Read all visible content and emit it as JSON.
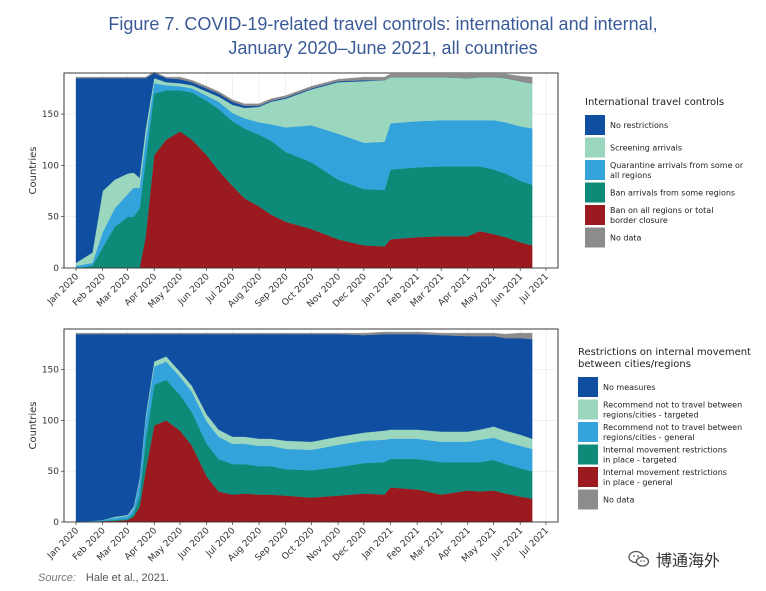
{
  "title_line1": "Figure 7. COVID-19-related travel controls: international and internal,",
  "title_line2": "January 2020–June 2021, all countries",
  "source_label": "Source:",
  "source_text": "Hale et al., 2021.",
  "watermark_text": "博通海外",
  "watermark_icon": "wechat-icon",
  "chart_data": [
    {
      "type": "area",
      "stacked": true,
      "ylabel": "Countries",
      "ylim": [
        0,
        190
      ],
      "yticks": [
        0,
        50,
        100,
        150
      ],
      "x_tick_labels": [
        "Jan 2020",
        "Feb 2020",
        "Mar 2020",
        "Apr 2020",
        "May 2020",
        "Jun 2020",
        "Jul 2020",
        "Aug 2020",
        "Sep 2020",
        "Oct 2020",
        "Nov 2020",
        "Dec 2020",
        "Jan 2021",
        "Feb 2021",
        "Mar 2021",
        "Apr 2021",
        "May 2021",
        "Jun 2021",
        "Jul 2021"
      ],
      "grid": true,
      "legend_position": "right",
      "legend_title": "International travel controls",
      "x": [
        "2020-01-01",
        "2020-01-20",
        "2020-02-01",
        "2020-02-15",
        "2020-03-01",
        "2020-03-08",
        "2020-03-15",
        "2020-03-22",
        "2020-04-01",
        "2020-04-15",
        "2020-05-01",
        "2020-05-15",
        "2020-06-01",
        "2020-06-15",
        "2020-07-01",
        "2020-07-15",
        "2020-08-01",
        "2020-08-15",
        "2020-09-01",
        "2020-10-01",
        "2020-11-01",
        "2020-12-01",
        "2020-12-25",
        "2021-01-01",
        "2021-02-01",
        "2021-03-01",
        "2021-04-01",
        "2021-04-15",
        "2021-05-01",
        "2021-05-15",
        "2021-06-01",
        "2021-06-15"
      ],
      "series": [
        {
          "name": "Ban on all regions or total border closure",
          "color": "#9b1a1f",
          "values": [
            0,
            0,
            0,
            0,
            0,
            0,
            0,
            30,
            110,
            125,
            133,
            125,
            110,
            95,
            80,
            68,
            60,
            52,
            45,
            38,
            28,
            22,
            21,
            28,
            30,
            31,
            31,
            36,
            33,
            30,
            25,
            22
          ]
        },
        {
          "name": "Ban arrivals from some regions",
          "color": "#0e8a78",
          "values": [
            0,
            2,
            20,
            40,
            50,
            50,
            58,
            75,
            60,
            48,
            40,
            46,
            53,
            60,
            63,
            68,
            70,
            72,
            68,
            65,
            58,
            55,
            55,
            68,
            68,
            68,
            68,
            63,
            63,
            62,
            60,
            59
          ]
        },
        {
          "name": "Quarantine arrivals from some or all regions",
          "color": "#35a3db",
          "values": [
            2,
            3,
            15,
            18,
            22,
            28,
            20,
            20,
            10,
            5,
            4,
            4,
            5,
            7,
            8,
            10,
            12,
            16,
            24,
            36,
            45,
            45,
            47,
            45,
            45,
            45,
            45,
            45,
            48,
            50,
            53,
            55
          ]
        },
        {
          "name": "Screening arrivals",
          "color": "#9bd6bf",
          "values": [
            3,
            10,
            40,
            28,
            20,
            15,
            10,
            10,
            5,
            3,
            3,
            3,
            4,
            5,
            8,
            10,
            15,
            22,
            28,
            35,
            50,
            60,
            60,
            45,
            43,
            42,
            41,
            42,
            42,
            43,
            44,
            44
          ]
        },
        {
          "name": "No restrictions",
          "color": "#0f4ea0",
          "values": [
            180,
            170,
            110,
            99,
            93,
            92,
            97,
            50,
            5,
            4,
            4,
            3,
            3,
            3,
            3,
            2,
            1,
            1,
            1,
            1,
            1,
            1,
            0,
            0,
            0,
            0,
            0,
            0,
            0,
            0,
            0,
            0
          ]
        },
        {
          "name": "No data",
          "color": "#8c8c8c",
          "values": [
            1,
            1,
            1,
            1,
            1,
            1,
            1,
            1,
            1,
            1,
            2,
            2,
            2,
            2,
            2,
            2,
            2,
            2,
            2,
            2,
            2,
            3,
            3,
            3,
            3,
            3,
            4,
            3,
            3,
            4,
            5,
            6
          ]
        }
      ]
    },
    {
      "type": "area",
      "stacked": true,
      "ylabel": "Countries",
      "ylim": [
        0,
        190
      ],
      "yticks": [
        0,
        50,
        100,
        150
      ],
      "x_tick_labels": [
        "Jan 2020",
        "Feb 2020",
        "Mar 2020",
        "Apr 2020",
        "May 2020",
        "Jun 2020",
        "Jul 2020",
        "Aug 2020",
        "Sep 2020",
        "Oct 2020",
        "Nov 2020",
        "Dec 2020",
        "Jan 2021",
        "Feb 2021",
        "Mar 2021",
        "Apr 2021",
        "May 2021",
        "Jun 2021",
        "Jul 2021"
      ],
      "grid": true,
      "legend_position": "right",
      "legend_title": "Restrictions on internal movement between cities/regions",
      "x": [
        "2020-01-01",
        "2020-01-20",
        "2020-02-01",
        "2020-02-15",
        "2020-03-01",
        "2020-03-08",
        "2020-03-15",
        "2020-03-22",
        "2020-04-01",
        "2020-04-15",
        "2020-05-01",
        "2020-05-15",
        "2020-06-01",
        "2020-06-15",
        "2020-07-01",
        "2020-07-15",
        "2020-08-01",
        "2020-08-15",
        "2020-09-01",
        "2020-10-01",
        "2020-11-01",
        "2020-12-01",
        "2020-12-25",
        "2021-01-01",
        "2021-02-01",
        "2021-03-01",
        "2021-04-01",
        "2021-04-15",
        "2021-05-01",
        "2021-05-15",
        "2021-06-01",
        "2021-06-15"
      ],
      "series": [
        {
          "name": "Internal movement restrictions in place - general",
          "color": "#9b1a1f",
          "values": [
            0,
            0,
            1,
            1,
            2,
            5,
            15,
            50,
            95,
            100,
            90,
            75,
            45,
            30,
            27,
            28,
            27,
            27,
            26,
            24,
            26,
            28,
            27,
            34,
            32,
            27,
            31,
            30,
            31,
            28,
            25,
            23
          ]
        },
        {
          "name": "Internal movement restrictions in place - targeted",
          "color": "#0e8a78",
          "values": [
            0,
            0,
            0,
            1,
            1,
            3,
            10,
            30,
            40,
            40,
            35,
            33,
            32,
            32,
            30,
            29,
            28,
            28,
            26,
            27,
            28,
            30,
            32,
            28,
            30,
            32,
            28,
            29,
            30,
            29,
            28,
            27
          ]
        },
        {
          "name": "Recommend not to travel between regions/cities - general",
          "color": "#35a3db",
          "values": [
            0,
            1,
            1,
            2,
            3,
            5,
            15,
            20,
            18,
            18,
            18,
            20,
            22,
            22,
            20,
            20,
            20,
            20,
            20,
            20,
            22,
            22,
            22,
            20,
            20,
            20,
            20,
            22,
            22,
            22,
            22,
            22
          ]
        },
        {
          "name": "Recommend not to travel between regions/cities - targeted",
          "color": "#9bd6bf",
          "values": [
            0,
            0,
            0,
            1,
            1,
            2,
            3,
            4,
            5,
            5,
            5,
            6,
            7,
            7,
            7,
            7,
            7,
            7,
            8,
            8,
            8,
            8,
            9,
            9,
            9,
            10,
            10,
            10,
            11,
            11,
            11,
            10
          ]
        },
        {
          "name": "No measures",
          "color": "#0f4ea0",
          "values": [
            185,
            184,
            183,
            180,
            178,
            170,
            142,
            81,
            27,
            22,
            37,
            51,
            79,
            94,
            101,
            101,
            103,
            103,
            105,
            106,
            101,
            96,
            95,
            94,
            94,
            95,
            94,
            92,
            89,
            91,
            95,
            98
          ]
        },
        {
          "name": "No data",
          "color": "#8c8c8c",
          "values": [
            1,
            1,
            1,
            1,
            1,
            1,
            1,
            1,
            1,
            1,
            1,
            1,
            1,
            1,
            1,
            1,
            1,
            1,
            1,
            1,
            1,
            2,
            2,
            2,
            2,
            2,
            3,
            3,
            3,
            4,
            5,
            6
          ]
        }
      ]
    }
  ]
}
